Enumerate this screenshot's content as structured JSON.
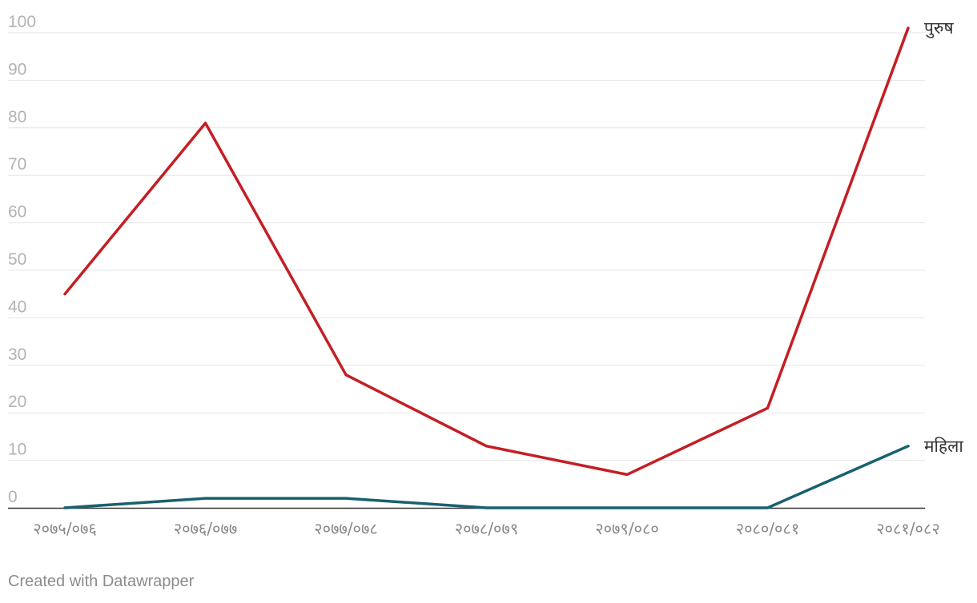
{
  "chart_data": {
    "type": "line",
    "categories": [
      "२०७५/०७६",
      "२०७६/०७७",
      "२०७७/०७८",
      "२०७८/०७९",
      "२०७९/०८०",
      "२०८०/०८१",
      "२०८१/०८२"
    ],
    "series": [
      {
        "name": "पुरुष",
        "values": [
          45,
          81,
          28,
          13,
          7,
          21,
          101
        ],
        "color": "#c41e24"
      },
      {
        "name": "महिला",
        "values": [
          0,
          2,
          2,
          0,
          0,
          0,
          13
        ],
        "color": "#18616f"
      }
    ],
    "yticks": [
      "0",
      "10",
      "20",
      "30",
      "40",
      "50",
      "60",
      "70",
      "80",
      "90",
      "100"
    ],
    "ylim": [
      0,
      100
    ],
    "grid": true,
    "legend": "direct labels at line ends"
  },
  "footer": {
    "credit": "Created with Datawrapper"
  }
}
